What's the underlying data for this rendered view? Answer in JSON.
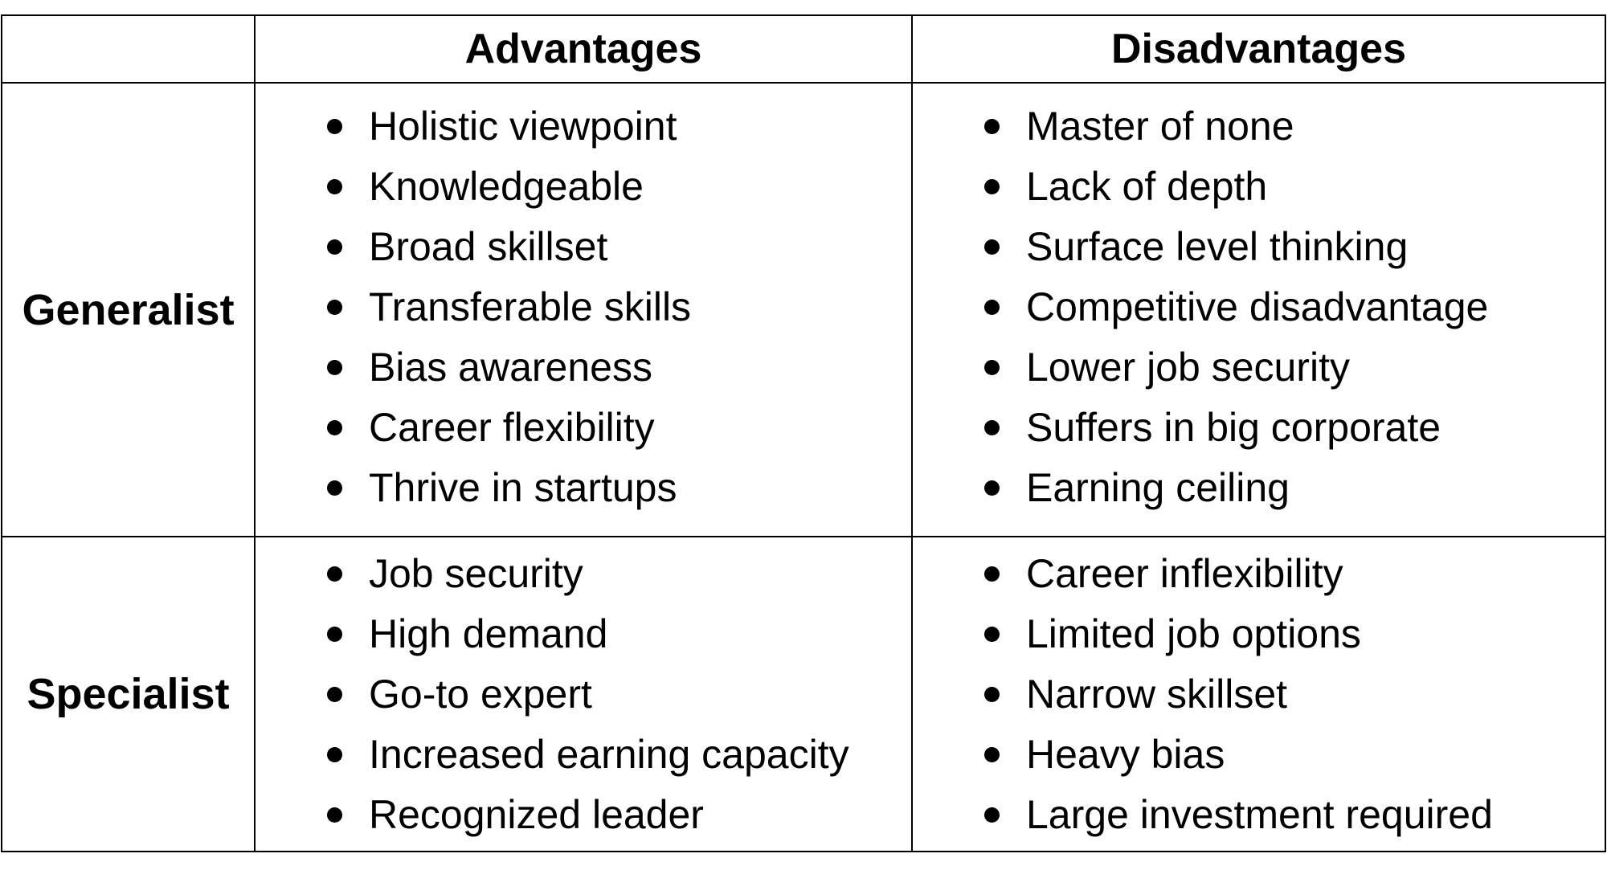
{
  "header": {
    "corner": "",
    "advantages": "Advantages",
    "disadvantages": "Disadvantages"
  },
  "rows": [
    {
      "label": "Generalist",
      "advantages": [
        "Holistic viewpoint",
        "Knowledgeable",
        "Broad skillset",
        "Transferable skills",
        "Bias awareness",
        "Career flexibility",
        "Thrive in startups"
      ],
      "disadvantages": [
        "Master of none",
        "Lack of depth",
        "Surface level thinking",
        "Competitive disadvantage",
        "Lower job security",
        "Suffers in big corporate",
        "Earning ceiling"
      ]
    },
    {
      "label": "Specialist",
      "advantages": [
        "Job security",
        "High demand",
        "Go-to expert",
        "Increased earning capacity",
        "Recognized leader"
      ],
      "disadvantages": [
        "Career inflexibility",
        "Limited job options",
        "Narrow skillset",
        "Heavy bias",
        "Large investment required"
      ]
    }
  ]
}
